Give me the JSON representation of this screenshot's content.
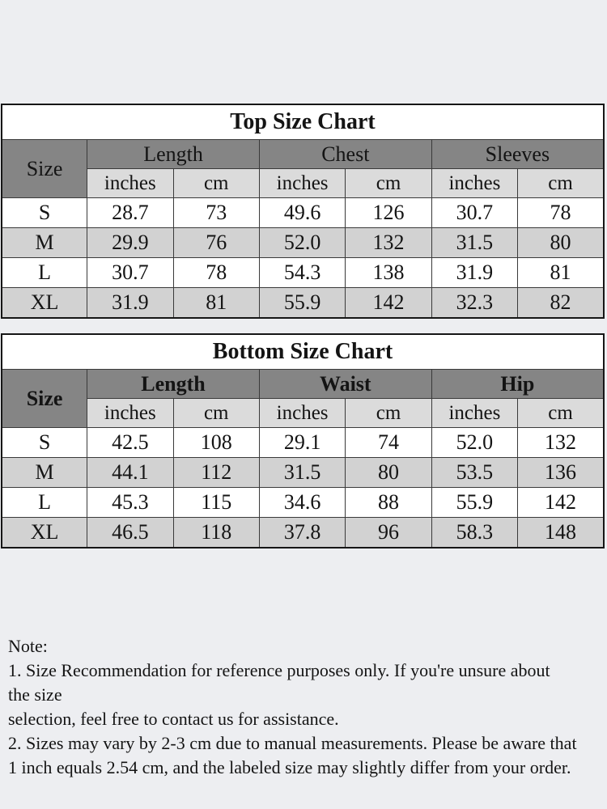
{
  "colors": {
    "page_bg": "#edeef1",
    "title_bg": "#ffffff",
    "group_header_bg": "#858585",
    "unit_header_bg": "#dbdbdb",
    "row_alt_bg": "#d2d2d2",
    "row_bg": "#ffffff",
    "text": "#141414",
    "border": "#3a3a3a"
  },
  "tables": [
    {
      "title": "Top Size Chart",
      "corner_label": "Size",
      "bold_headers": false,
      "groups": [
        "Length",
        "Chest",
        "Sleeves"
      ],
      "unit_headers": [
        "inches",
        "cm",
        "inches",
        "cm",
        "inches",
        "cm"
      ],
      "rows": [
        {
          "size": "S",
          "values": [
            "28.7",
            "73",
            "49.6",
            "126",
            "30.7",
            "78"
          ]
        },
        {
          "size": "M",
          "values": [
            "29.9",
            "76",
            "52.0",
            "132",
            "31.5",
            "80"
          ]
        },
        {
          "size": "L",
          "values": [
            "30.7",
            "78",
            "54.3",
            "138",
            "31.9",
            "81"
          ]
        },
        {
          "size": "XL",
          "values": [
            "31.9",
            "81",
            "55.9",
            "142",
            "32.3",
            "82"
          ]
        }
      ]
    },
    {
      "title": "Bottom Size Chart",
      "corner_label": "Size",
      "bold_headers": true,
      "groups": [
        "Length",
        "Waist",
        "Hip"
      ],
      "unit_headers": [
        "inches",
        "cm",
        "inches",
        "cm",
        "inches",
        "cm"
      ],
      "rows": [
        {
          "size": "S",
          "values": [
            "42.5",
            "108",
            "29.1",
            "74",
            "52.0",
            "132"
          ]
        },
        {
          "size": "M",
          "values": [
            "44.1",
            "112",
            "31.5",
            "80",
            "53.5",
            "136"
          ]
        },
        {
          "size": "L",
          "values": [
            "45.3",
            "115",
            "34.6",
            "88",
            "55.9",
            "142"
          ]
        },
        {
          "size": "XL",
          "values": [
            "46.5",
            "118",
            "37.8",
            "96",
            "58.3",
            "148"
          ]
        }
      ]
    }
  ],
  "note": {
    "heading": "Note:",
    "lines": [
      "1. Size Recommendation for reference purposes only. If you're unsure about",
      "the size",
      "selection, feel free to contact us for assistance.",
      "2. Sizes may vary by 2-3 cm due to manual measurements. Please be aware that",
      "1 inch equals 2.54 cm, and the labeled size may slightly differ from your order."
    ]
  }
}
